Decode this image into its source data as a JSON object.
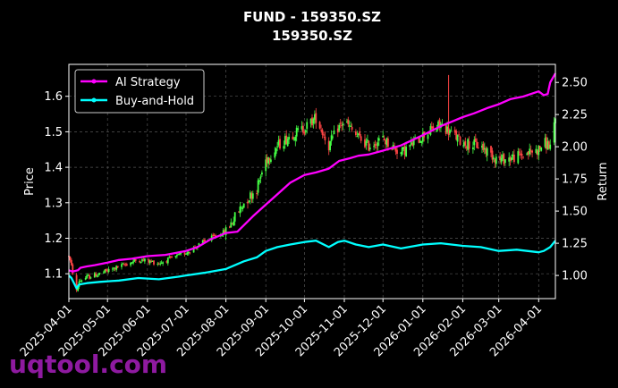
{
  "chart_data": {
    "type": "line",
    "title": "FUND - 159350.SZ",
    "subtitle": "159350.SZ",
    "ylabel": "Price",
    "y2label": "Return",
    "x_ticks": [
      "2025-04-01",
      "2025-05-01",
      "2025-06-01",
      "2025-07-01",
      "2025-08-01",
      "2025-09-01",
      "2025-10-01",
      "2025-11-01",
      "2025-12-01",
      "2026-01-01",
      "2026-02-01",
      "2026-03-01",
      "2026-04-01"
    ],
    "xlim": [
      "2025-04-01",
      "2026-04-14"
    ],
    "y_ticks": [
      1.1,
      1.2,
      1.3,
      1.4,
      1.5,
      1.6
    ],
    "ylim": [
      1.03,
      1.69
    ],
    "y2_ticks": [
      1.0,
      1.25,
      1.5,
      1.75,
      2.0,
      2.25,
      2.5
    ],
    "y2lim": [
      0.82,
      2.64
    ],
    "grid": true,
    "legend_position": "top-left",
    "series": [
      {
        "name": "AI Strategy",
        "color": "#ff00ff",
        "axis": "right",
        "x": [
          "2025-04-01",
          "2025-04-04",
          "2025-04-08",
          "2025-04-10",
          "2025-04-15",
          "2025-04-21",
          "2025-05-01",
          "2025-05-10",
          "2025-05-20",
          "2025-06-01",
          "2025-06-15",
          "2025-07-01",
          "2025-07-10",
          "2025-07-20",
          "2025-08-01",
          "2025-08-10",
          "2025-08-15",
          "2025-08-22",
          "2025-09-01",
          "2025-09-10",
          "2025-09-20",
          "2025-10-01",
          "2025-10-10",
          "2025-10-20",
          "2025-10-28",
          "2025-11-05",
          "2025-11-12",
          "2025-11-20",
          "2025-12-01",
          "2025-12-15",
          "2026-01-01",
          "2026-01-15",
          "2026-02-01",
          "2026-02-10",
          "2026-02-20",
          "2026-03-01",
          "2026-03-10",
          "2026-03-20",
          "2026-04-01",
          "2026-04-05",
          "2026-04-08",
          "2026-04-10",
          "2026-04-14"
        ],
        "values": [
          1.04,
          1.03,
          1.04,
          1.06,
          1.07,
          1.08,
          1.1,
          1.12,
          1.13,
          1.15,
          1.16,
          1.19,
          1.22,
          1.28,
          1.33,
          1.34,
          1.39,
          1.46,
          1.55,
          1.63,
          1.72,
          1.78,
          1.8,
          1.83,
          1.89,
          1.91,
          1.93,
          1.94,
          1.97,
          2.01,
          2.09,
          2.16,
          2.23,
          2.26,
          2.3,
          2.33,
          2.37,
          2.39,
          2.43,
          2.4,
          2.41,
          2.5,
          2.57
        ]
      },
      {
        "name": "Buy-and-Hold",
        "color": "#00ffff",
        "axis": "right",
        "x": [
          "2025-04-01",
          "2025-04-03",
          "2025-04-07",
          "2025-04-09",
          "2025-04-15",
          "2025-04-25",
          "2025-05-10",
          "2025-05-25",
          "2025-06-10",
          "2025-06-25",
          "2025-07-01",
          "2025-07-15",
          "2025-08-01",
          "2025-08-15",
          "2025-08-25",
          "2025-09-01",
          "2025-09-10",
          "2025-09-20",
          "2025-10-01",
          "2025-10-10",
          "2025-10-20",
          "2025-10-27",
          "2025-11-01",
          "2025-11-10",
          "2025-11-20",
          "2025-12-01",
          "2025-12-15",
          "2026-01-01",
          "2026-01-15",
          "2026-02-01",
          "2026-02-15",
          "2026-03-01",
          "2026-03-15",
          "2026-04-01",
          "2026-04-05",
          "2026-04-10",
          "2026-04-14"
        ],
        "values": [
          1.0,
          0.98,
          0.9,
          0.93,
          0.94,
          0.95,
          0.96,
          0.98,
          0.97,
          0.99,
          1.0,
          1.02,
          1.05,
          1.11,
          1.14,
          1.19,
          1.22,
          1.24,
          1.26,
          1.27,
          1.22,
          1.26,
          1.27,
          1.24,
          1.22,
          1.24,
          1.21,
          1.24,
          1.25,
          1.23,
          1.22,
          1.19,
          1.2,
          1.18,
          1.19,
          1.22,
          1.27
        ]
      },
      {
        "name": "Price",
        "type": "candlestick",
        "axis": "left",
        "x": [
          "2025-04-01",
          "2025-04-03",
          "2025-04-07",
          "2025-04-09",
          "2025-04-15",
          "2025-04-25",
          "2025-05-10",
          "2025-05-25",
          "2025-06-10",
          "2025-06-25",
          "2025-07-01",
          "2025-07-15",
          "2025-08-01",
          "2025-08-15",
          "2025-08-25",
          "2025-09-01",
          "2025-09-10",
          "2025-09-20",
          "2025-10-01",
          "2025-10-10",
          "2025-10-20",
          "2025-10-27",
          "2025-11-01",
          "2025-11-10",
          "2025-11-20",
          "2025-12-01",
          "2025-12-15",
          "2026-01-01",
          "2026-01-10",
          "2026-01-15",
          "2026-02-01",
          "2026-02-15",
          "2026-03-01",
          "2026-03-15",
          "2026-04-01",
          "2026-04-05",
          "2026-04-10",
          "2026-04-14"
        ],
        "values": [
          1.15,
          1.12,
          1.05,
          1.08,
          1.09,
          1.1,
          1.12,
          1.14,
          1.13,
          1.15,
          1.16,
          1.19,
          1.22,
          1.3,
          1.34,
          1.42,
          1.46,
          1.49,
          1.51,
          1.54,
          1.46,
          1.51,
          1.53,
          1.49,
          1.46,
          1.48,
          1.44,
          1.49,
          1.51,
          1.52,
          1.47,
          1.46,
          1.42,
          1.43,
          1.45,
          1.47,
          1.46,
          1.53
        ],
        "up_color": "#44ff44",
        "down_color": "#ff4444"
      }
    ]
  },
  "legend": {
    "items": [
      "AI Strategy",
      "Buy-and-Hold"
    ]
  },
  "watermark": "uqtool.com"
}
